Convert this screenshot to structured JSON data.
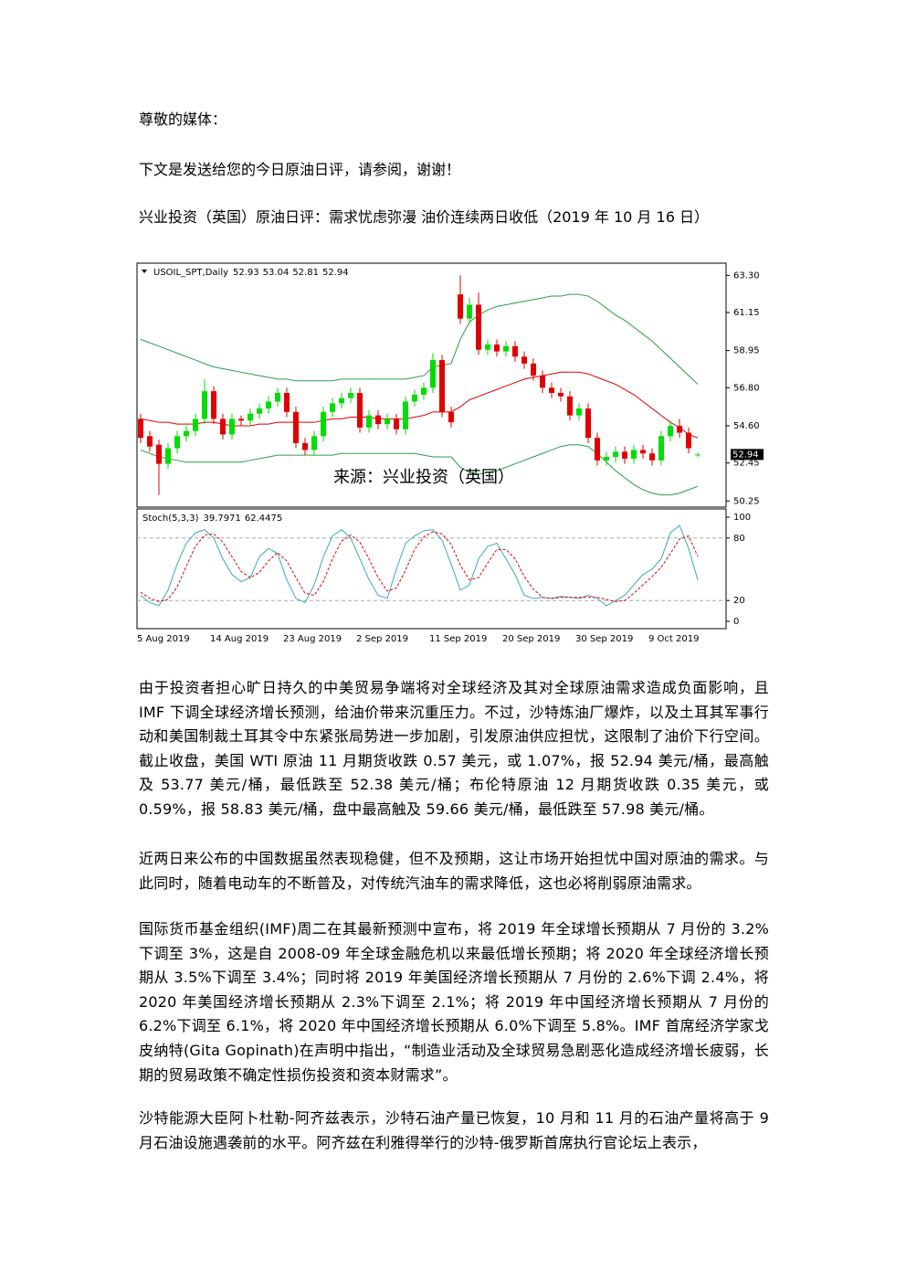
{
  "document": {
    "greeting": "尊敬的媒体：",
    "intro": "下文是发送给您的今日原油日评，请参阅，谢谢！",
    "headline": "兴业投资（英国）原油日评：需求忧虑弥漫 油价连续两日收低（2019 年 10 月 16 日）",
    "paragraphs": [
      "由于投资者担心旷日持久的中美贸易争端将对全球经济及其对全球原油需求造成负面影响，且 IMF 下调全球经济增长预测，给油价带来沉重压力。不过，沙特炼油厂爆炸，以及土耳其军事行动和美国制裁土耳其令中东紧张局势进一步加剧，引发原油供应担忧，这限制了油价下行空间。截止收盘，美国 WTI 原油 11 月期货收跌 0.57 美元，或 1.07%，报 52.94 美元/桶，最高触及 53.77 美元/桶，最低跌至 52.38 美元/桶；布伦特原油 12 月期货收跌 0.35 美元，或 0.59%，报 58.83 美元/桶，盘中最高触及 59.66 美元/桶，最低跌至 57.98 美元/桶。",
      "近两日来公布的中国数据虽然表现稳健，但不及预期，这让市场开始担忧中国对原油的需求。与此同时，随着电动车的不断普及，对传统汽油车的需求降低，这也必将削弱原油需求。",
      "国际货币基金组织(IMF)周二在其最新预测中宣布，将 2019 年全球增长预期从 7 月份的 3.2%下调至 3%，这是自 2008-09 年全球金融危机以来最低增长预期；将 2020 年全球经济增长预期从 3.5%下调至 3.4%；同时将 2019 年美国经济增长预期从 7 月份的 2.6%下调 2.4%，将 2020 年美国经济增长预期从 2.3%下调至 2.1%；将 2019 年中国经济增长预期从 7 月份的 6.2%下调至 6.1%，将 2020 年中国经济增长预期从 6.0%下调至 5.8%。IMF 首席经济学家戈皮纳特(Gita Gopinath)在声明中指出，“制造业活动及全球贸易急剧恶化造成经济增长疲弱，长期的贸易政策不确定性损伤投资和资本财需求”。",
      "沙特能源大臣阿卜杜勒-阿齐兹表示，沙特石油产量已恢复，10 月和 11 月的石油产量将高于 9 月石油设施遇袭前的水平。阿齐兹在利雅得举行的沙特-俄罗斯首席执行官论坛上表示，"
    ]
  },
  "chart_data": {
    "type": "candlestick",
    "symbol": "USOIL_SPT,Daily",
    "watermark": "来源：兴业投资（英国）",
    "categories": [
      "5 Aug 2019",
      null,
      null,
      null,
      null,
      null,
      null,
      null,
      "14 Aug 2019",
      null,
      null,
      null,
      null,
      null,
      null,
      null,
      "23 Aug 2019",
      null,
      null,
      null,
      null,
      null,
      null,
      null,
      "2 Sep 2019",
      null,
      null,
      null,
      null,
      null,
      null,
      null,
      "11 Sep 2019",
      null,
      null,
      null,
      null,
      null,
      null,
      null,
      "20 Sep 2019",
      null,
      null,
      null,
      null,
      null,
      null,
      null,
      "30 Sep 2019",
      null,
      null,
      null,
      null,
      null,
      null,
      null,
      "9 Oct 2019",
      null,
      null,
      null,
      null,
      null
    ],
    "open": [
      55.0,
      54.0,
      53.5,
      52.4,
      53.3,
      54.0,
      54.3,
      55.0,
      56.6,
      55.0,
      54.1,
      55.0,
      54.9,
      55.3,
      55.6,
      56.0,
      56.5,
      55.4,
      53.6,
      53.2,
      54.0,
      55.4,
      55.9,
      56.2,
      56.5,
      54.5,
      55.2,
      54.7,
      55.0,
      54.4,
      56.0,
      56.4,
      56.8,
      58.4,
      55.4,
      62.2,
      60.8,
      61.6,
      59.0,
      59.3,
      58.9,
      59.2,
      58.6,
      58.2,
      57.5,
      56.8,
      56.5,
      56.3,
      55.2,
      55.6,
      53.9,
      52.6,
      52.8,
      53.1,
      52.7,
      53.2,
      53.0,
      52.6,
      54.0,
      54.6,
      54.2,
      52.93
    ],
    "high": [
      55.3,
      54.3,
      53.8,
      53.6,
      54.3,
      54.6,
      55.3,
      57.3,
      56.9,
      55.3,
      55.3,
      55.2,
      55.6,
      55.9,
      56.3,
      56.8,
      56.8,
      55.7,
      53.9,
      54.3,
      55.7,
      56.2,
      56.5,
      56.8,
      56.8,
      55.5,
      55.5,
      55.3,
      55.3,
      56.3,
      56.7,
      57.1,
      58.8,
      58.7,
      55.7,
      63.3,
      62.0,
      62.3,
      59.6,
      59.6,
      59.5,
      59.5,
      58.9,
      58.5,
      57.8,
      57.1,
      56.8,
      56.6,
      55.9,
      55.9,
      54.2,
      53.1,
      53.4,
      53.4,
      53.5,
      53.5,
      53.3,
      54.3,
      54.9,
      55.0,
      54.5,
      53.04
    ],
    "low": [
      53.6,
      53.1,
      50.6,
      52.1,
      53.0,
      53.7,
      54.0,
      54.7,
      54.7,
      53.8,
      53.8,
      54.6,
      54.6,
      55.0,
      55.3,
      55.7,
      55.1,
      53.3,
      52.9,
      52.9,
      53.7,
      55.1,
      55.6,
      55.9,
      54.2,
      54.2,
      54.4,
      54.4,
      54.1,
      54.1,
      55.7,
      56.1,
      56.5,
      55.1,
      54.5,
      60.5,
      60.5,
      58.7,
      58.7,
      58.6,
      58.6,
      58.3,
      57.9,
      57.2,
      56.5,
      56.2,
      56.0,
      54.9,
      54.9,
      53.6,
      52.3,
      52.3,
      52.5,
      52.4,
      52.4,
      52.7,
      52.3,
      52.3,
      53.7,
      53.9,
      53.0,
      52.81
    ],
    "close": [
      53.9,
      53.4,
      52.4,
      53.3,
      54.0,
      54.3,
      55.0,
      56.6,
      55.0,
      54.1,
      55.0,
      54.9,
      55.3,
      55.6,
      56.0,
      56.5,
      55.4,
      53.6,
      53.2,
      54.0,
      55.4,
      55.9,
      56.2,
      56.5,
      54.5,
      55.2,
      54.7,
      55.0,
      54.4,
      56.0,
      56.4,
      56.8,
      58.4,
      55.4,
      54.8,
      60.8,
      61.6,
      59.0,
      59.3,
      58.9,
      59.2,
      58.6,
      58.2,
      57.5,
      56.8,
      56.5,
      56.3,
      55.2,
      55.6,
      53.9,
      52.6,
      52.8,
      53.1,
      52.7,
      53.2,
      53.0,
      52.6,
      54.0,
      54.6,
      54.2,
      53.3,
      52.94
    ],
    "up_color": "#00dd00",
    "down_color": "#e00000",
    "ylim": [
      50.0,
      63.9
    ],
    "yticks": [
      {
        "value": 63.3,
        "label": "63.30"
      },
      61.15,
      58.95,
      {
        "value": 56.8,
        "label": "56.80"
      },
      {
        "value": 54.6,
        "label": "54.60"
      },
      52.45,
      50.25
    ],
    "bollinger": {
      "band_color": "#2a9d4a",
      "middle_color": "#e00000",
      "upper": [
        59.6,
        59.4,
        59.2,
        59.0,
        58.8,
        58.6,
        58.4,
        58.2,
        58.0,
        57.9,
        57.8,
        57.7,
        57.6,
        57.5,
        57.4,
        57.3,
        57.3,
        57.2,
        57.2,
        57.2,
        57.2,
        57.2,
        57.3,
        57.3,
        57.3,
        57.3,
        57.3,
        57.3,
        57.3,
        57.3,
        57.4,
        57.5,
        58.0,
        58.1,
        58.2,
        59.6,
        60.6,
        61.0,
        61.3,
        61.5,
        61.6,
        61.7,
        61.8,
        61.9,
        62.0,
        62.1,
        62.1,
        62.2,
        62.2,
        62.1,
        61.8,
        61.4,
        61.0,
        60.7,
        60.3,
        59.9,
        59.5,
        59.0,
        58.5,
        58.0,
        57.5,
        57.0
      ],
      "middle": [
        55.0,
        54.9,
        54.8,
        54.8,
        54.7,
        54.7,
        54.7,
        54.8,
        54.8,
        54.7,
        54.6,
        54.6,
        54.6,
        54.7,
        54.7,
        54.8,
        54.8,
        54.8,
        54.8,
        54.8,
        54.9,
        55.0,
        55.0,
        55.1,
        55.1,
        55.1,
        55.0,
        55.0,
        55.0,
        55.0,
        55.1,
        55.2,
        55.4,
        55.4,
        55.4,
        55.7,
        56.1,
        56.3,
        56.5,
        56.7,
        56.9,
        57.1,
        57.3,
        57.4,
        57.5,
        57.6,
        57.7,
        57.7,
        57.7,
        57.6,
        57.4,
        57.2,
        57.0,
        56.7,
        56.4,
        56.0,
        55.6,
        55.2,
        54.8,
        54.5,
        54.1,
        53.9
      ],
      "lower": [
        53.2,
        53.0,
        52.8,
        52.7,
        52.6,
        52.5,
        52.5,
        52.5,
        52.5,
        52.5,
        52.5,
        52.5,
        52.6,
        52.7,
        52.8,
        52.9,
        52.9,
        52.9,
        52.9,
        52.9,
        52.9,
        52.9,
        53.0,
        53.0,
        53.0,
        53.0,
        53.0,
        53.0,
        53.0,
        53.0,
        53.0,
        52.9,
        52.8,
        52.8,
        52.8,
        52.2,
        51.9,
        51.8,
        51.9,
        52.0,
        52.2,
        52.4,
        52.6,
        52.8,
        53.0,
        53.2,
        53.4,
        53.5,
        53.5,
        53.4,
        53.0,
        52.5,
        52.0,
        51.6,
        51.2,
        50.9,
        50.7,
        50.6,
        50.6,
        50.7,
        50.9,
        51.1
      ]
    },
    "stoch": {
      "label": "Stoch(5,3,3)",
      "main_color": "#3aaab8",
      "signal_color": "#e00000",
      "ylim": [
        0,
        100
      ],
      "yticks": [
        100,
        80,
        20,
        0
      ],
      "levels": [
        80,
        20
      ],
      "main": [
        25,
        18,
        15,
        30,
        55,
        75,
        85,
        88,
        80,
        60,
        45,
        38,
        42,
        62,
        70,
        65,
        40,
        22,
        18,
        35,
        62,
        82,
        88,
        80,
        60,
        40,
        25,
        22,
        50,
        75,
        82,
        87,
        88,
        78,
        55,
        30,
        35,
        60,
        72,
        75,
        60,
        45,
        25,
        22,
        23,
        22,
        24,
        23,
        22,
        25,
        22,
        15,
        20,
        25,
        35,
        45,
        50,
        60,
        85,
        92,
        70,
        39.7971
      ],
      "signal": [
        28,
        22,
        19,
        21,
        33,
        53,
        72,
        83,
        84,
        76,
        62,
        48,
        42,
        47,
        58,
        66,
        58,
        42,
        27,
        25,
        38,
        60,
        77,
        83,
        76,
        60,
        42,
        29,
        32,
        49,
        69,
        81,
        86,
        84,
        74,
        54,
        40,
        42,
        56,
        69,
        69,
        60,
        43,
        31,
        23,
        22,
        23,
        23,
        23,
        23,
        23,
        21,
        19,
        20,
        27,
        35,
        43,
        52,
        65,
        79,
        82,
        62.4475
      ]
    }
  }
}
